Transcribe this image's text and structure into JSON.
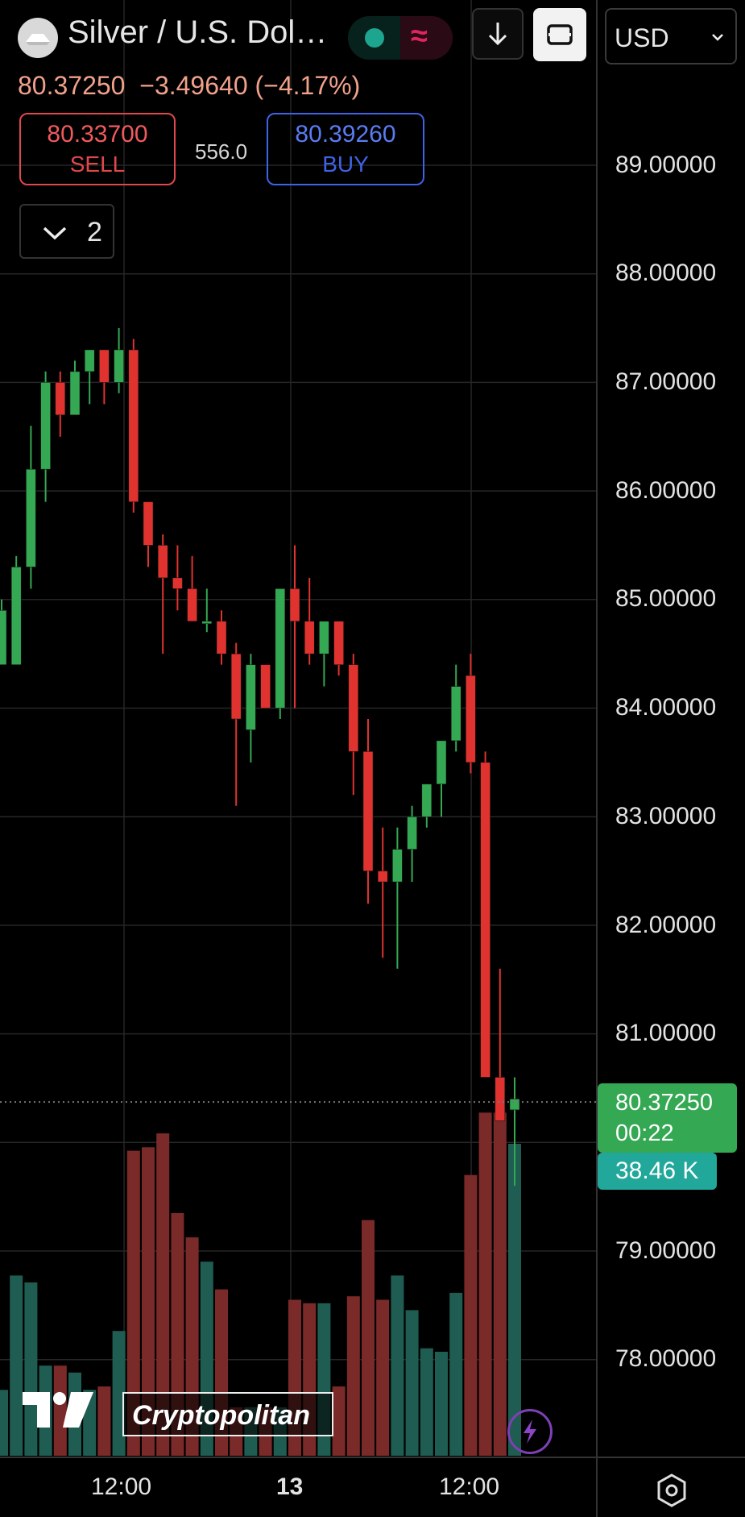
{
  "header": {
    "symbol_title": "Silver / U.S. Dol…",
    "currency": "USD"
  },
  "quote": {
    "last": "80.37250",
    "change": "−3.49640",
    "change_pct": "(−4.17%)"
  },
  "trade": {
    "sell_price": "80.33700",
    "sell_label": "SELL",
    "spread": "556.0",
    "buy_price": "80.39260",
    "buy_label": "BUY"
  },
  "indicators_toggle": {
    "count": "2"
  },
  "price_axis": {
    "labels": [
      "89.00000",
      "88.00000",
      "87.00000",
      "86.00000",
      "85.00000",
      "84.00000",
      "83.00000",
      "82.00000",
      "81.00000",
      "79.00000",
      "78.00000"
    ]
  },
  "last_price_tag": {
    "price": "80.37250",
    "countdown": "00:22"
  },
  "volume_tag": "38.46 K",
  "time_axis": {
    "labels": [
      "12:00",
      "13",
      "12:00"
    ]
  },
  "watermark": "Cryptopolitan",
  "colors": {
    "up": "#34a853",
    "down": "#e0332f",
    "vol_up": "#1f5c52",
    "vol_down": "#7a2a28",
    "last_price_tag": "#34a853",
    "volume_tag": "#21a89a"
  },
  "chart_data": {
    "type": "candlestick",
    "y_range": [
      77.5,
      89.5
    ],
    "candles": [
      {
        "o": 84.4,
        "h": 85.0,
        "l": 84.4,
        "c": 84.9
      },
      {
        "o": 84.4,
        "h": 85.4,
        "l": 84.4,
        "c": 85.3
      },
      {
        "o": 85.3,
        "h": 86.6,
        "l": 85.1,
        "c": 86.2
      },
      {
        "o": 86.2,
        "h": 87.1,
        "l": 85.9,
        "c": 87.0
      },
      {
        "o": 87.0,
        "h": 87.1,
        "l": 86.5,
        "c": 86.7
      },
      {
        "o": 86.7,
        "h": 87.2,
        "l": 86.7,
        "c": 87.1
      },
      {
        "o": 87.1,
        "h": 87.3,
        "l": 86.8,
        "c": 87.3
      },
      {
        "o": 87.3,
        "h": 87.3,
        "l": 86.8,
        "c": 87.0
      },
      {
        "o": 87.0,
        "h": 87.5,
        "l": 86.9,
        "c": 87.3
      },
      {
        "o": 87.3,
        "h": 87.4,
        "l": 85.8,
        "c": 85.9
      },
      {
        "o": 85.9,
        "h": 85.9,
        "l": 85.3,
        "c": 85.5
      },
      {
        "o": 85.5,
        "h": 85.6,
        "l": 84.5,
        "c": 85.2
      },
      {
        "o": 85.2,
        "h": 85.5,
        "l": 84.9,
        "c": 85.1
      },
      {
        "o": 85.1,
        "h": 85.4,
        "l": 84.8,
        "c": 84.8
      },
      {
        "o": 84.8,
        "h": 85.1,
        "l": 84.7,
        "c": 84.8
      },
      {
        "o": 84.8,
        "h": 84.9,
        "l": 84.4,
        "c": 84.5
      },
      {
        "o": 84.5,
        "h": 84.6,
        "l": 83.1,
        "c": 83.9
      },
      {
        "o": 83.8,
        "h": 84.5,
        "l": 83.5,
        "c": 84.4
      },
      {
        "o": 84.4,
        "h": 84.4,
        "l": 84.0,
        "c": 84.0
      },
      {
        "o": 84.0,
        "h": 85.1,
        "l": 83.9,
        "c": 85.1
      },
      {
        "o": 85.1,
        "h": 85.5,
        "l": 84.0,
        "c": 84.8
      },
      {
        "o": 84.8,
        "h": 85.2,
        "l": 84.4,
        "c": 84.5
      },
      {
        "o": 84.5,
        "h": 84.8,
        "l": 84.2,
        "c": 84.8
      },
      {
        "o": 84.8,
        "h": 84.8,
        "l": 84.3,
        "c": 84.4
      },
      {
        "o": 84.4,
        "h": 84.5,
        "l": 83.2,
        "c": 83.6
      },
      {
        "o": 83.6,
        "h": 83.9,
        "l": 82.2,
        "c": 82.5
      },
      {
        "o": 82.5,
        "h": 82.9,
        "l": 81.7,
        "c": 82.4
      },
      {
        "o": 82.4,
        "h": 82.9,
        "l": 81.6,
        "c": 82.7
      },
      {
        "o": 82.7,
        "h": 83.1,
        "l": 82.4,
        "c": 83.0
      },
      {
        "o": 83.0,
        "h": 83.3,
        "l": 82.9,
        "c": 83.3
      },
      {
        "o": 83.3,
        "h": 83.7,
        "l": 83.0,
        "c": 83.7
      },
      {
        "o": 83.7,
        "h": 84.4,
        "l": 83.6,
        "c": 84.2
      },
      {
        "o": 84.3,
        "h": 84.5,
        "l": 83.4,
        "c": 83.5
      },
      {
        "o": 83.5,
        "h": 83.6,
        "l": 80.6,
        "c": 80.6
      },
      {
        "o": 80.6,
        "h": 81.6,
        "l": 80.2,
        "c": 80.2
      },
      {
        "o": 80.3,
        "h": 80.6,
        "l": 79.6,
        "c": 80.4
      }
    ],
    "volume_relative": [
      0.19,
      0.52,
      0.5,
      0.26,
      0.26,
      0.24,
      0.19,
      0.2,
      0.36,
      0.88,
      0.89,
      0.93,
      0.7,
      0.63,
      0.56,
      0.48,
      0.14,
      0.14,
      0.14,
      0.14,
      0.45,
      0.44,
      0.44,
      0.2,
      0.46,
      0.68,
      0.45,
      0.52,
      0.42,
      0.31,
      0.3,
      0.47,
      0.81,
      0.99,
      0.99,
      0.9
    ],
    "last_price": 80.3725,
    "x_tick_labels": [
      "12:00",
      "13",
      "12:00"
    ]
  }
}
